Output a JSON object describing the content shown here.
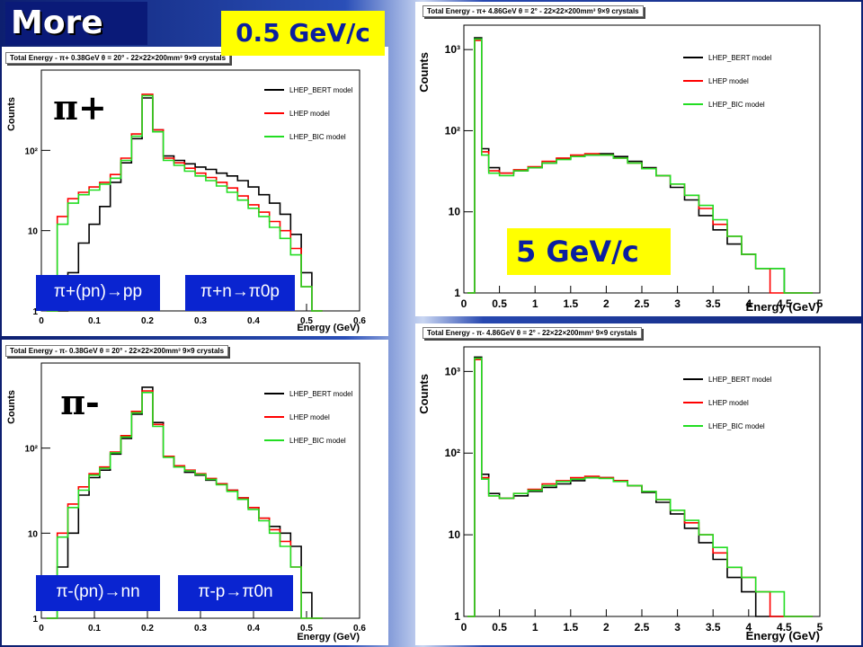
{
  "slide_title": "More",
  "callouts": {
    "low_momentum": "0.5 GeV/c",
    "high_momentum": "5 GeV/c"
  },
  "particles": {
    "pi_plus": "π+",
    "pi_minus": "π-"
  },
  "reactions": {
    "r1": "π+(pn)→pp",
    "r2": "π+n→π0p",
    "r3": "π-(pn)→nn",
    "r4": "π-p→π0n"
  },
  "colors": {
    "bert": "#000000",
    "lhep": "#ff0000",
    "bic": "#22dd22",
    "callout": "#ffff00",
    "reaction_box": "#0a24d0"
  },
  "legend": [
    "LHEP_BERT model",
    "LHEP model",
    "LHEP_BIC model"
  ],
  "axis": {
    "xlabel": "Energy (GeV)",
    "ylabel": "Counts"
  },
  "chart_data": [
    {
      "type": "line",
      "title": "Total Energy - π+ 0.38GeV θ = 20° - 22×22×200mm³ 9×9 crystals",
      "xlabel": "Energy (GeV)",
      "ylabel": "Counts",
      "xlim": [
        0,
        0.6
      ],
      "ylim": [
        1,
        1000
      ],
      "yscale": "log",
      "xticks": [
        "0",
        "0.1",
        "0.2",
        "0.3",
        "0.4",
        "0.5",
        "0.6"
      ],
      "yticks": [
        "1",
        "10",
        "10²"
      ],
      "x": [
        0.02,
        0.04,
        0.06,
        0.08,
        0.1,
        0.12,
        0.14,
        0.16,
        0.18,
        0.2,
        0.22,
        0.24,
        0.26,
        0.28,
        0.3,
        0.32,
        0.34,
        0.36,
        0.38,
        0.4,
        0.42,
        0.44,
        0.46,
        0.48,
        0.5,
        0.52
      ],
      "series": [
        {
          "name": "LHEP_BERT model",
          "values": [
            1,
            1,
            3,
            7,
            12,
            20,
            40,
            70,
            140,
            450,
            180,
            85,
            75,
            68,
            62,
            58,
            52,
            48,
            42,
            35,
            28,
            22,
            16,
            9,
            3,
            1
          ]
        },
        {
          "name": "LHEP model",
          "values": [
            1,
            15,
            25,
            30,
            35,
            40,
            50,
            80,
            160,
            500,
            180,
            80,
            70,
            60,
            52,
            46,
            40,
            34,
            27,
            21,
            17,
            13,
            10,
            6,
            2,
            1
          ]
        },
        {
          "name": "LHEP_BIC model",
          "values": [
            1,
            12,
            22,
            28,
            32,
            38,
            45,
            75,
            150,
            480,
            170,
            75,
            65,
            55,
            48,
            42,
            36,
            30,
            24,
            19,
            15,
            11,
            8,
            5,
            2,
            1
          ]
        }
      ]
    },
    {
      "type": "line",
      "title": "Total Energy - π- 0.38GeV θ = 20° - 22×22×200mm³ 9×9 crystals",
      "xlabel": "Energy (GeV)",
      "ylabel": "Counts",
      "xlim": [
        0,
        0.6
      ],
      "ylim": [
        1,
        1000
      ],
      "yscale": "log",
      "xticks": [
        "0",
        "0.1",
        "0.2",
        "0.3",
        "0.4",
        "0.5",
        "0.6"
      ],
      "yticks": [
        "1",
        "10",
        "10²"
      ],
      "x": [
        0.02,
        0.04,
        0.06,
        0.08,
        0.1,
        0.12,
        0.14,
        0.16,
        0.18,
        0.2,
        0.22,
        0.24,
        0.26,
        0.28,
        0.3,
        0.32,
        0.34,
        0.36,
        0.38,
        0.4,
        0.42,
        0.44,
        0.46,
        0.48,
        0.5,
        0.52
      ],
      "series": [
        {
          "name": "LHEP_BERT model",
          "values": [
            1,
            4,
            10,
            28,
            45,
            55,
            85,
            130,
            250,
            520,
            200,
            80,
            60,
            52,
            48,
            42,
            38,
            32,
            26,
            20,
            15,
            12,
            10,
            7,
            2,
            1
          ]
        },
        {
          "name": "LHEP model",
          "values": [
            1,
            10,
            22,
            35,
            50,
            60,
            90,
            140,
            270,
            470,
            190,
            80,
            62,
            55,
            50,
            44,
            38,
            32,
            26,
            20,
            15,
            11,
            8,
            4,
            1,
            1
          ]
        },
        {
          "name": "LHEP_BIC model",
          "values": [
            1,
            9,
            20,
            32,
            48,
            58,
            88,
            135,
            260,
            450,
            180,
            78,
            60,
            54,
            49,
            43,
            37,
            31,
            25,
            19,
            14,
            10,
            7,
            4,
            1,
            1
          ]
        }
      ]
    },
    {
      "type": "line",
      "title": "Total Energy - π+ 4.86GeV θ = 2° - 22×22×200mm³ 9×9 crystals",
      "xlabel": "Energy (GeV)",
      "ylabel": "Counts",
      "xlim": [
        0,
        5
      ],
      "ylim": [
        1,
        2000
      ],
      "yscale": "log",
      "xticks": [
        "0",
        "0.5",
        "1",
        "1.5",
        "2",
        "2.5",
        "3",
        "3.5",
        "4",
        "4.5",
        "5"
      ],
      "yticks": [
        "1",
        "10",
        "10²",
        "10³"
      ],
      "x": [
        0.1,
        0.2,
        0.3,
        0.4,
        0.6,
        0.8,
        1.0,
        1.2,
        1.4,
        1.6,
        1.8,
        2.0,
        2.2,
        2.4,
        2.6,
        2.8,
        3.0,
        3.2,
        3.4,
        3.6,
        3.8,
        4.0,
        4.2,
        4.4,
        4.6,
        4.8
      ],
      "series": [
        {
          "name": "LHEP_BERT model",
          "values": [
            1,
            1400,
            60,
            35,
            30,
            32,
            35,
            40,
            45,
            48,
            50,
            52,
            48,
            42,
            35,
            28,
            20,
            14,
            9,
            6,
            4,
            3,
            2,
            2,
            1,
            1
          ]
        },
        {
          "name": "LHEP model",
          "values": [
            1,
            1300,
            55,
            32,
            30,
            33,
            36,
            42,
            46,
            50,
            52,
            50,
            46,
            40,
            34,
            28,
            22,
            16,
            11,
            7,
            5,
            3,
            2,
            1,
            1,
            1
          ]
        },
        {
          "name": "LHEP_BIC model",
          "values": [
            1,
            1350,
            50,
            30,
            28,
            32,
            35,
            40,
            44,
            48,
            50,
            50,
            46,
            40,
            34,
            28,
            22,
            16,
            12,
            8,
            5,
            3,
            2,
            2,
            1,
            1
          ]
        }
      ]
    },
    {
      "type": "line",
      "title": "Total Energy - π- 4.86GeV θ = 2° - 22×22×200mm³ 9×9 crystals",
      "xlabel": "Energy (GeV)",
      "ylabel": "Counts",
      "xlim": [
        0,
        5
      ],
      "ylim": [
        1,
        2000
      ],
      "yscale": "log",
      "xticks": [
        "0",
        "0.5",
        "1",
        "1.5",
        "2",
        "2.5",
        "3",
        "3.5",
        "4",
        "4.5",
        "5"
      ],
      "yticks": [
        "1",
        "10",
        "10²",
        "10³"
      ],
      "x": [
        0.1,
        0.2,
        0.3,
        0.4,
        0.6,
        0.8,
        1.0,
        1.2,
        1.4,
        1.6,
        1.8,
        2.0,
        2.2,
        2.4,
        2.6,
        2.8,
        3.0,
        3.2,
        3.4,
        3.6,
        3.8,
        4.0,
        4.2,
        4.4,
        4.6,
        4.8
      ],
      "series": [
        {
          "name": "LHEP_BERT model",
          "values": [
            1,
            1500,
            55,
            32,
            28,
            30,
            34,
            38,
            42,
            46,
            50,
            50,
            46,
            40,
            33,
            25,
            18,
            12,
            8,
            5,
            3,
            2,
            1,
            1,
            1,
            1
          ]
        },
        {
          "name": "LHEP model",
          "values": [
            1,
            1400,
            50,
            30,
            28,
            32,
            36,
            42,
            46,
            50,
            52,
            50,
            46,
            40,
            34,
            27,
            20,
            14,
            10,
            6,
            4,
            3,
            2,
            1,
            1,
            1
          ]
        },
        {
          "name": "LHEP_BIC model",
          "values": [
            1,
            1450,
            48,
            30,
            28,
            32,
            35,
            40,
            45,
            48,
            50,
            49,
            45,
            40,
            34,
            27,
            20,
            15,
            10,
            7,
            4,
            3,
            2,
            2,
            1,
            1
          ]
        }
      ]
    }
  ]
}
